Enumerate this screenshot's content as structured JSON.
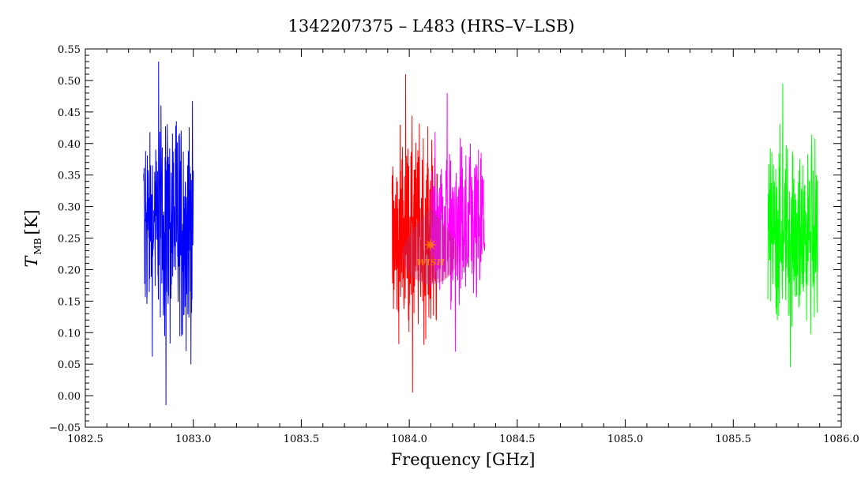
{
  "chart_data": {
    "type": "line",
    "title": "1342207375 – L483 (HRS–V–LSB)",
    "xlabel": "Frequency [GHz]",
    "ylabel": {
      "symbol": "T",
      "subscript": "MB",
      "unit": "[K]"
    },
    "xlim": [
      1082.5,
      1086.0
    ],
    "ylim": [
      -0.05,
      0.55
    ],
    "x_ticks": [
      "1082.5",
      "1083.0",
      "1083.5",
      "1084.0",
      "1084.5",
      "1085.0",
      "1085.5",
      "1086.0"
    ],
    "y_ticks": [
      "−0.05",
      "0.00",
      "0.05",
      "0.10",
      "0.15",
      "0.20",
      "0.25",
      "0.30",
      "0.35",
      "0.40",
      "0.45",
      "0.50",
      "0.55"
    ],
    "grid": false,
    "legend": "none",
    "series": [
      {
        "color": "#0000ff",
        "x_range": [
          1082.77,
          1083.0
        ],
        "mean": 0.28,
        "min": -0.015,
        "max": 0.53,
        "n": 230
      },
      {
        "color": "#ff0000",
        "x_range": [
          1083.92,
          1084.13
        ],
        "mean": 0.25,
        "min": 0.005,
        "max": 0.51,
        "n": 220
      },
      {
        "color": "#ff00ff",
        "x_range": [
          1084.1,
          1084.35
        ],
        "mean": 0.26,
        "min": 0.07,
        "max": 0.48,
        "n": 220
      },
      {
        "color": "#00ff00",
        "x_range": [
          1085.66,
          1085.89
        ],
        "mean": 0.25,
        "min": 0.045,
        "max": 0.495,
        "n": 220
      }
    ]
  },
  "watermark": {
    "text": "WISH"
  }
}
